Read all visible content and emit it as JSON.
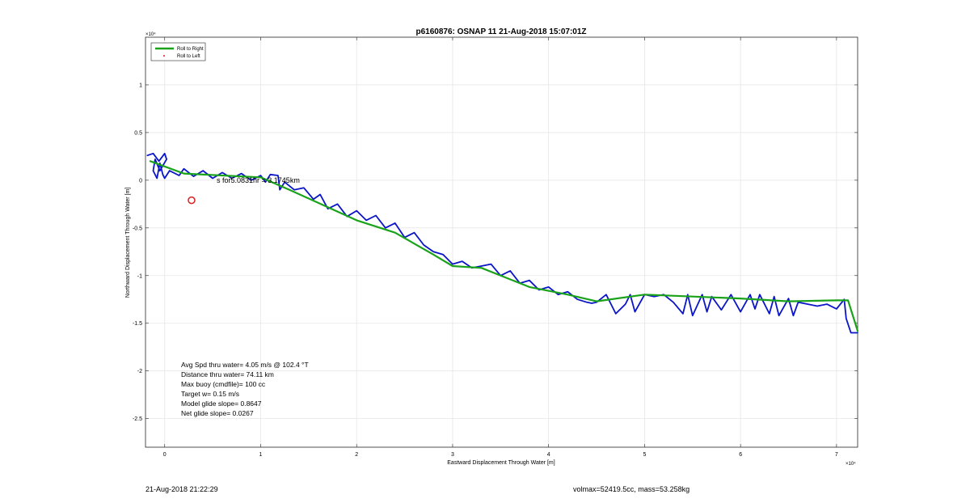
{
  "chart_data": {
    "type": "line",
    "title": "p6160876: OSNAP 11 21-Aug-2018 15:07:01Z",
    "xlabel": "Eastward Displacement Through Water [m]",
    "ylabel": "Northward Displacement Through Water [m]",
    "x_exponent_label": "×10⁴",
    "y_exponent_label": "×10⁴",
    "xlim": [
      -0.2,
      7.22
    ],
    "ylim": [
      -2.8,
      1.5
    ],
    "xticks": [
      0,
      1,
      2,
      3,
      4,
      5,
      6,
      7
    ],
    "xtick_labels": [
      "0",
      "1",
      "2",
      "3",
      "4",
      "5",
      "6",
      "7"
    ],
    "yticks": [
      1,
      0.5,
      0,
      -0.5,
      -1,
      -1.5,
      -2,
      -2.5
    ],
    "ytick_labels": [
      "1",
      "0.5",
      "0",
      "-0.5",
      "-1",
      "-1.5",
      "-2",
      "-2.5"
    ],
    "grid": true,
    "legend": {
      "placement": "top-left",
      "entries": [
        {
          "label": "Roll to Right",
          "color": "#1aa31a",
          "marker": "line"
        },
        {
          "label": "Roll to Left",
          "color": "#d62020",
          "marker": "dot"
        }
      ]
    },
    "series": [
      {
        "name": "Roll to Right",
        "color": "#1aa31a",
        "x": [
          -0.15,
          0.2,
          0.6,
          1.0,
          1.3,
          2.0,
          2.4,
          2.8,
          3.0,
          3.3,
          3.8,
          4.2,
          4.5,
          5.0,
          5.5,
          6.0,
          6.5,
          7.0,
          7.12,
          7.22
        ],
        "y": [
          0.2,
          0.07,
          0.05,
          0.03,
          -0.1,
          -0.42,
          -0.55,
          -0.78,
          -0.9,
          -0.92,
          -1.12,
          -1.2,
          -1.27,
          -1.2,
          -1.22,
          -1.24,
          -1.27,
          -1.26,
          -1.26,
          -1.58
        ]
      },
      {
        "name": "",
        "color": "#0a14c8",
        "x": [
          -0.18,
          -0.12,
          -0.06,
          0.0,
          0.02,
          -0.05,
          -0.1,
          -0.12,
          -0.08,
          -0.05,
          -0.02,
          0.0,
          0.05,
          0.15,
          0.2,
          0.3,
          0.4,
          0.5,
          0.6,
          0.7,
          0.8,
          0.9,
          1.0,
          1.05,
          1.1,
          1.18,
          1.2,
          1.25,
          1.35,
          1.45,
          1.55,
          1.62,
          1.7,
          1.8,
          1.9,
          2.0,
          2.1,
          2.2,
          2.3,
          2.4,
          2.5,
          2.6,
          2.7,
          2.8,
          2.9,
          3.0,
          3.1,
          3.2,
          3.3,
          3.4,
          3.5,
          3.6,
          3.7,
          3.8,
          3.9,
          4.0,
          4.1,
          4.2,
          4.3,
          4.4,
          4.45,
          4.5,
          4.6,
          4.65,
          4.7,
          4.8,
          4.85,
          4.9,
          5.0,
          5.1,
          5.2,
          5.3,
          5.4,
          5.45,
          5.5,
          5.6,
          5.65,
          5.7,
          5.8,
          5.9,
          6.0,
          6.1,
          6.15,
          6.2,
          6.3,
          6.35,
          6.4,
          6.5,
          6.55,
          6.6,
          6.7,
          6.8,
          6.9,
          7.0,
          7.08,
          7.1,
          7.15,
          7.22
        ],
        "y": [
          0.26,
          0.28,
          0.2,
          0.28,
          0.22,
          0.1,
          0.22,
          0.1,
          0.02,
          0.18,
          0.06,
          0.02,
          0.1,
          0.05,
          0.12,
          0.04,
          0.1,
          0.02,
          0.08,
          0.02,
          0.07,
          0.0,
          0.05,
          -0.02,
          0.06,
          0.05,
          -0.1,
          -0.02,
          -0.1,
          -0.08,
          -0.2,
          -0.15,
          -0.3,
          -0.25,
          -0.38,
          -0.32,
          -0.42,
          -0.37,
          -0.5,
          -0.45,
          -0.6,
          -0.55,
          -0.68,
          -0.75,
          -0.78,
          -0.88,
          -0.85,
          -0.92,
          -0.9,
          -0.88,
          -1.0,
          -0.95,
          -1.08,
          -1.05,
          -1.15,
          -1.12,
          -1.2,
          -1.17,
          -1.25,
          -1.28,
          -1.29,
          -1.28,
          -1.2,
          -1.3,
          -1.4,
          -1.3,
          -1.2,
          -1.38,
          -1.2,
          -1.22,
          -1.2,
          -1.28,
          -1.4,
          -1.2,
          -1.42,
          -1.2,
          -1.38,
          -1.22,
          -1.36,
          -1.2,
          -1.38,
          -1.2,
          -1.35,
          -1.2,
          -1.4,
          -1.22,
          -1.42,
          -1.24,
          -1.42,
          -1.28,
          -1.3,
          -1.32,
          -1.3,
          -1.35,
          -1.25,
          -1.45,
          -1.6,
          -1.6
        ]
      }
    ],
    "annotations": {
      "near_origin_text": "s for5.0831hr = 3.1745km",
      "stats": [
        "Avg Spd thru water=  4.05 m/s @ 102.4 °T",
        "Distance thru water= 74.11 km",
        "Max buoy (cmdfile)= 100 cc",
        "Target w= 0.15 m/s",
        "Model glide slope= 0.8647",
        "Net glide slope= 0.0267"
      ]
    },
    "markers": [
      {
        "label": "red-circle",
        "x": 0.28,
        "y": -0.21,
        "color": "#d62020"
      }
    ]
  },
  "footer": {
    "timestamp": "21-Aug-2018 21:22:29",
    "volume_mass": "volmax=52419.5cc, mass=53.258kg"
  }
}
